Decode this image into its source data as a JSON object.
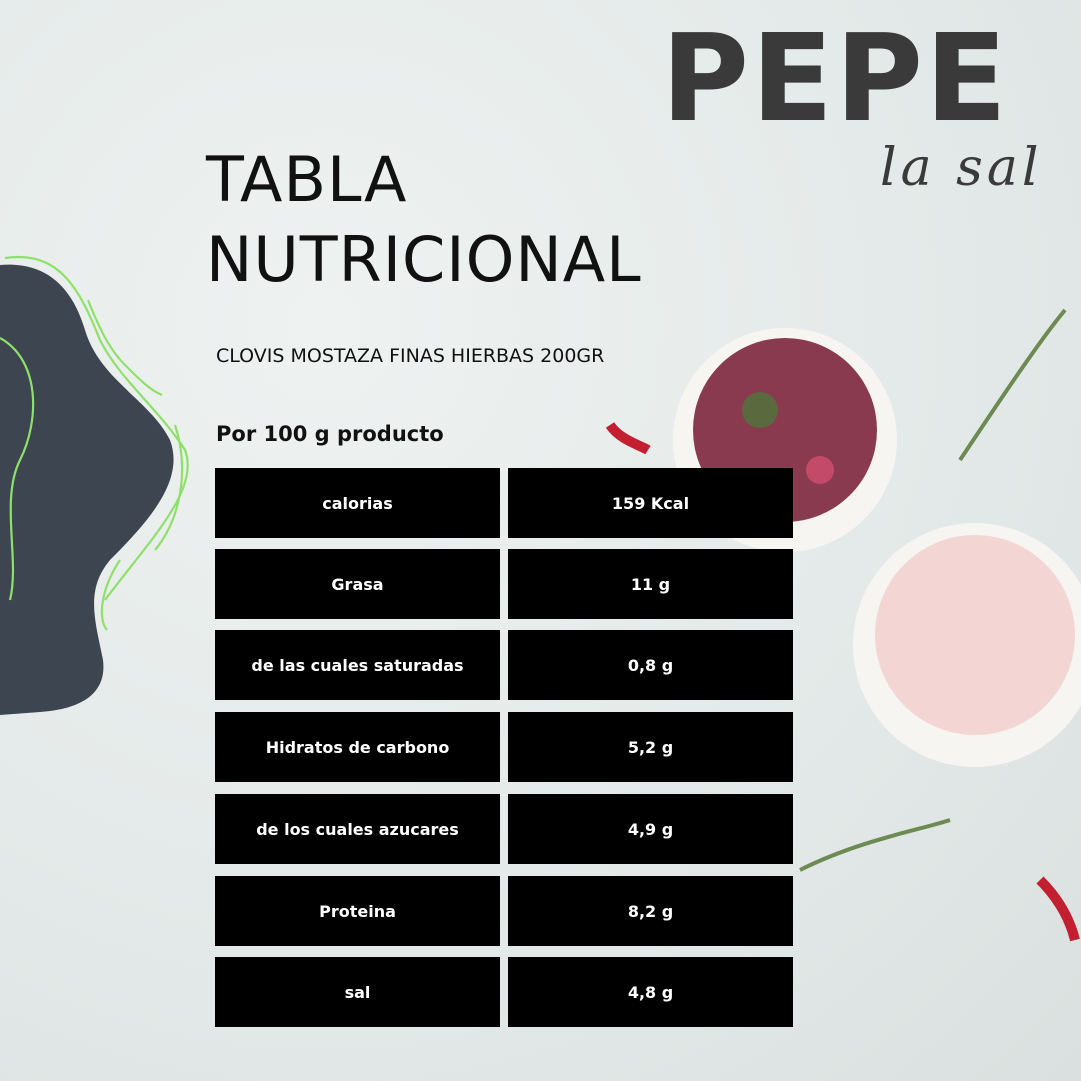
{
  "brand": {
    "name": "PEPE",
    "tagline": "la sal"
  },
  "title": {
    "line1": "TABLA",
    "line2": "NUTRICIONAL"
  },
  "product": "CLOVIS MOSTAZA FINAS HIERBAS 200GR",
  "per_label": "Por 100 g producto",
  "table": [
    {
      "label": "calorias",
      "value": "159 Kcal"
    },
    {
      "label": "Grasa",
      "value": "11 g"
    },
    {
      "label": "de las cuales saturadas",
      "value": "0,8 g"
    },
    {
      "label": "Hidratos de carbono",
      "value": "5,2 g"
    },
    {
      "label": "de los cuales azucares",
      "value": "4,9 g"
    },
    {
      "label": "Proteina",
      "value": "8,2 g"
    },
    {
      "label": "sal",
      "value": "4,8 g"
    }
  ],
  "colors": {
    "blob": "#3d4550",
    "accent_green": "#8fe06a",
    "text": "#111111",
    "cell_bg": "#000000"
  }
}
